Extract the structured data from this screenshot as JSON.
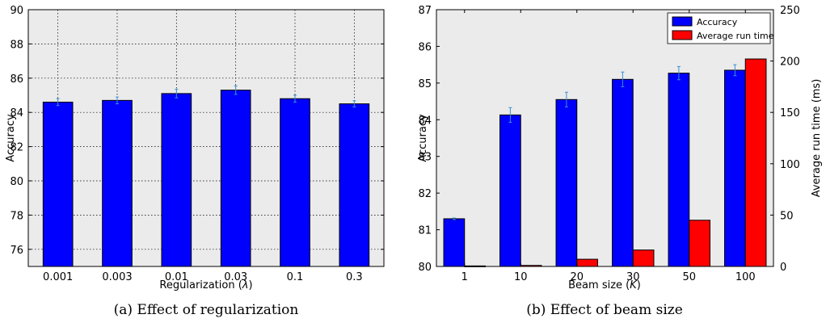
{
  "chart_data": [
    {
      "type": "bar",
      "caption": "(a) Effect of regularization",
      "categories": [
        "0.001",
        "0.003",
        "0.01",
        "0.03",
        "0.1",
        "0.3"
      ],
      "series": [
        {
          "values": [
            84.6,
            84.7,
            85.1,
            85.3,
            84.8,
            84.5
          ],
          "errors": [
            0.2,
            0.2,
            0.25,
            0.25,
            0.2,
            0.18
          ],
          "color": "#0000ff"
        }
      ],
      "xlabel_text": "Regularization (",
      "xlabel_symbol": "λ",
      "xlabel_close": ")",
      "ylabel": "Accuracy",
      "ylim": [
        75,
        90
      ],
      "yticks": [
        "76",
        "78",
        "80",
        "82",
        "84",
        "86",
        "88",
        "90"
      ],
      "grid": true,
      "error_color": "#3c8fd0",
      "background": "#ebebeb"
    },
    {
      "type": "bar",
      "caption": "(b) Effect of beam size",
      "categories": [
        "1",
        "10",
        "20",
        "30",
        "50",
        "100"
      ],
      "series": [
        {
          "name": "Accuracy",
          "values": [
            81.3,
            84.13,
            84.55,
            85.1,
            85.27,
            85.35
          ],
          "errors": [
            0.02,
            0.2,
            0.2,
            0.2,
            0.18,
            0.15
          ],
          "color": "#0000ff",
          "axis": "left"
        },
        {
          "name": "Average run time",
          "values": [
            0.5,
            1,
            7,
            16,
            45,
            202
          ],
          "color": "#ff0000",
          "axis": "right"
        }
      ],
      "xlabel_text": "Beam size (",
      "xlabel_symbol": "K",
      "xlabel_close": ")",
      "ylabel": "Accuracy",
      "ylim": [
        80,
        87
      ],
      "yticks": [
        "80",
        "81",
        "82",
        "83",
        "84",
        "85",
        "86",
        "87"
      ],
      "y2label": "Average run time (ms)",
      "y2lim": [
        0,
        250
      ],
      "y2ticks": [
        "0",
        "50",
        "100",
        "150",
        "200",
        "250"
      ],
      "legend_position": "top-right",
      "grid": false,
      "error_color": "#3c8fd0",
      "background": "#ebebeb"
    }
  ]
}
